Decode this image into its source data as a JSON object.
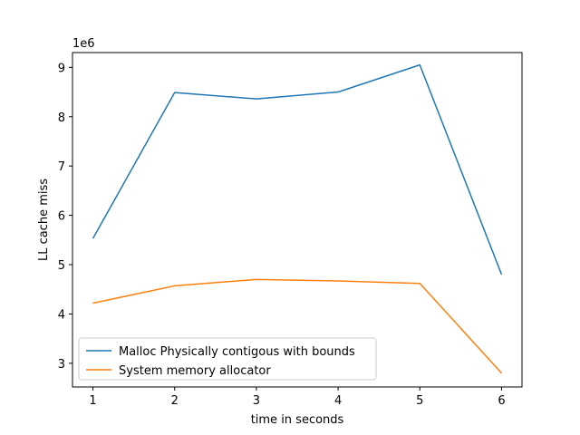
{
  "chart_data": {
    "type": "line",
    "title": "",
    "xlabel": "time in seconds",
    "ylabel": "LL cache miss",
    "y_offset_label": "1e6",
    "x": [
      1,
      2,
      3,
      4,
      5,
      6
    ],
    "xticks": [
      1,
      2,
      3,
      4,
      5,
      6
    ],
    "yticks": [
      3,
      4,
      5,
      6,
      7,
      8,
      9
    ],
    "xlim": [
      0.75,
      6.25
    ],
    "ylim": [
      2.52,
      9.3
    ],
    "grid": false,
    "legend_position": "lower-left",
    "series": [
      {
        "name": "Malloc Physically contigous with bounds",
        "color": "#1f77b4",
        "values": [
          5.53,
          8.49,
          8.36,
          8.5,
          9.05,
          4.8
        ]
      },
      {
        "name": "System memory allocator",
        "color": "#ff7f0e",
        "values": [
          4.22,
          4.57,
          4.7,
          4.67,
          4.62,
          2.8
        ]
      }
    ]
  }
}
